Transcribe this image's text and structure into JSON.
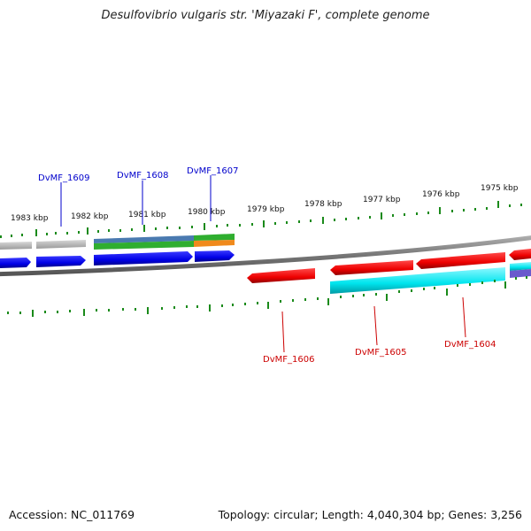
{
  "title": "Desulfovibrio vulgaris str. 'Miyazaki F', complete genome",
  "footer": {
    "accession": "Accession: NC_011769",
    "topology": "Topology: circular; Length: 4,040,304 bp; Genes: 3,256"
  },
  "scale_labels": [
    "1983 kbp",
    "1982 kbp",
    "1981 kbp",
    "1980 kbp",
    "1979 kbp",
    "1978 kbp",
    "1977 kbp",
    "1976 kbp",
    "1975 kbp"
  ],
  "gene_labels": [
    {
      "text": "DvMF_1609",
      "color": "#0000cc"
    },
    {
      "text": "DvMF_1608",
      "color": "#0000cc"
    },
    {
      "text": "DvMF_1607",
      "color": "#0000cc"
    },
    {
      "text": "DvMF_1606",
      "color": "#cc0000"
    },
    {
      "text": "DvMF_1605",
      "color": "#cc0000"
    },
    {
      "text": "DvMF_1604",
      "color": "#cc0000"
    }
  ],
  "colors": {
    "forward_strand": "#0000ee",
    "reverse_strand": "#ee0000",
    "backbone": "#808080",
    "tick": "#1a8a1a",
    "cog_grey": "#b8b8b8",
    "cog_steel": "#4a7ab0",
    "cog_green": "#2fae2f",
    "cog_orange": "#f08a1c",
    "cog_cyan": "#00e5ee",
    "cog_violet": "#6a5acd"
  }
}
